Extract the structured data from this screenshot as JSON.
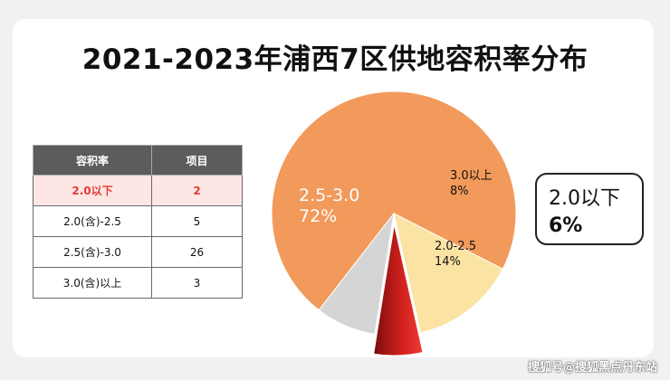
{
  "title": "2021-2023年浦西7区供地容积率分布",
  "table": {
    "headers": [
      "容积率",
      "项目"
    ],
    "rows": [
      {
        "ratio": "2.0以下",
        "count": "2"
      },
      {
        "ratio": "2.0(含)-2.5",
        "count": "5"
      },
      {
        "ratio": "2.5(含)-3.0",
        "count": "26"
      },
      {
        "ratio": "3.0(含)以上",
        "count": "3"
      }
    ]
  },
  "chart_data": {
    "type": "pie",
    "title": "2021-2023年浦西7区供地容积率分布",
    "slices": [
      {
        "label": "2.5-3.0",
        "value": 72,
        "pct_label": "72%",
        "color": "#f29a5b"
      },
      {
        "label": "3.0以上",
        "value": 8,
        "pct_label": "8%",
        "color": "#d5d5d5"
      },
      {
        "label": "2.0以下",
        "value": 6,
        "pct_label": "6%",
        "color": "#e0322d",
        "exploded": true,
        "callout": true
      },
      {
        "label": "2.0-2.5",
        "value": 14,
        "pct_label": "14%",
        "color": "#fbe3a3"
      }
    ]
  },
  "watermark": "搜狐号@搜狐黑点丹东站"
}
